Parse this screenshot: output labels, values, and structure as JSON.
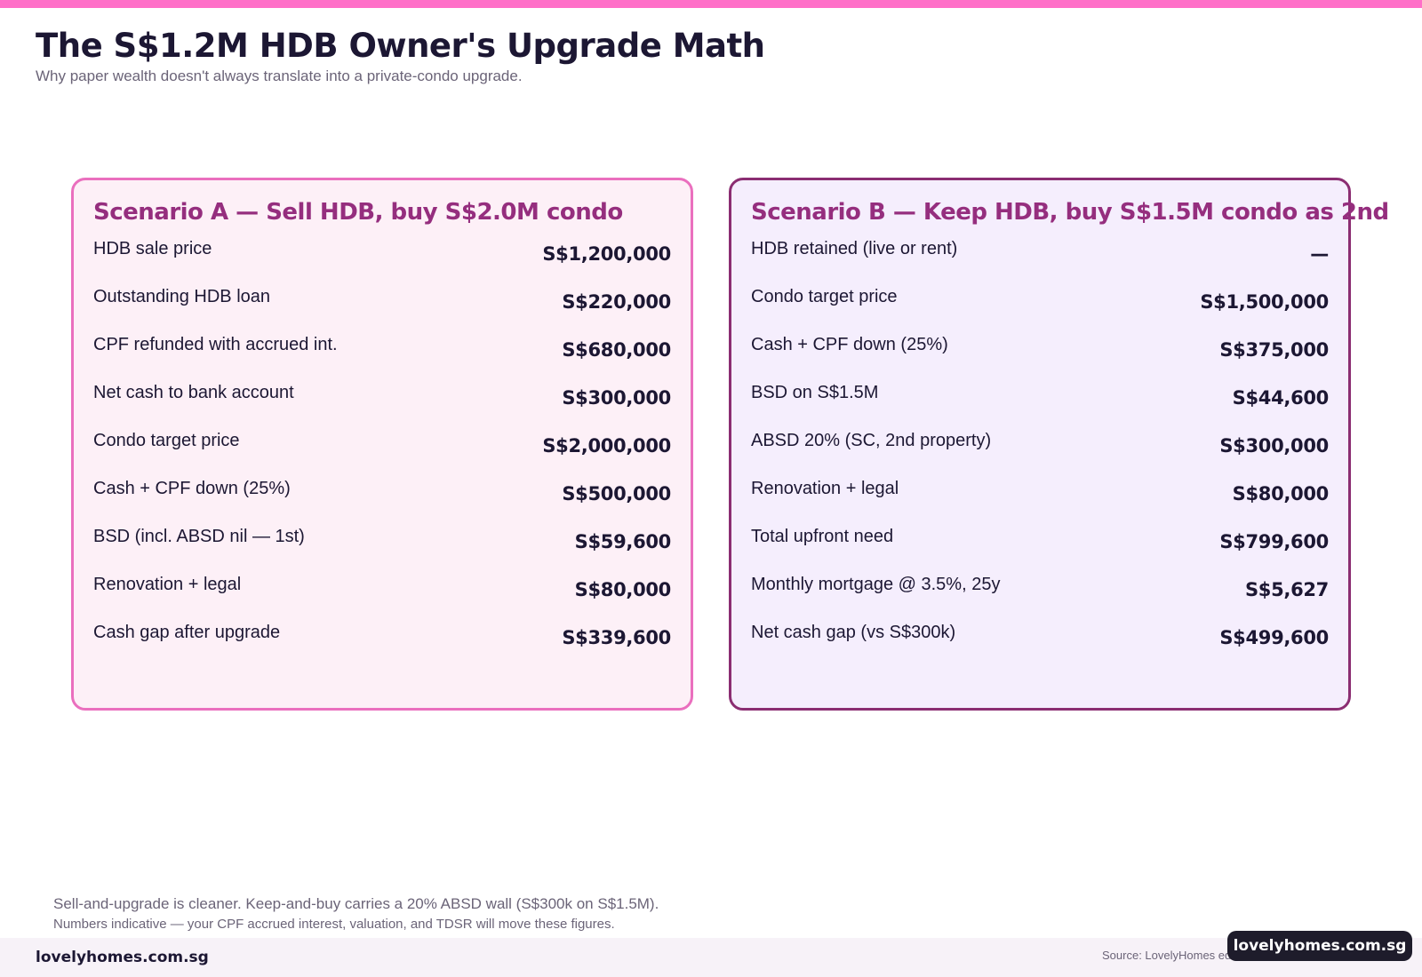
{
  "header": {
    "title": "The S$1.2M HDB Owner's Upgrade Math",
    "subtitle": "Why paper wealth doesn't always translate into a private-condo upgrade."
  },
  "scenario_a": {
    "title": "Scenario A — Sell HDB, buy S$2.0M condo",
    "rows": [
      {
        "label": "HDB sale price",
        "value": "S$1,200,000"
      },
      {
        "label": "Outstanding HDB loan",
        "value": "S$220,000"
      },
      {
        "label": "CPF refunded with accrued int.",
        "value": "S$680,000"
      },
      {
        "label": "Net cash to bank account",
        "value": "S$300,000"
      },
      {
        "label": "Condo target price",
        "value": "S$2,000,000"
      },
      {
        "label": "Cash + CPF down (25%)",
        "value": "S$500,000"
      },
      {
        "label": "BSD (incl. ABSD nil — 1st)",
        "value": "S$59,600"
      },
      {
        "label": "Renovation + legal",
        "value": "S$80,000"
      },
      {
        "label": "Cash gap after upgrade",
        "value": "S$339,600"
      }
    ]
  },
  "scenario_b": {
    "title": "Scenario B — Keep HDB, buy S$1.5M condo as 2nd",
    "rows": [
      {
        "label": "HDB retained (live or rent)",
        "value": "—"
      },
      {
        "label": "Condo target price",
        "value": "S$1,500,000"
      },
      {
        "label": "Cash + CPF down (25%)",
        "value": "S$375,000"
      },
      {
        "label": "BSD on S$1.5M",
        "value": "S$44,600"
      },
      {
        "label": "ABSD 20% (SC, 2nd property)",
        "value": "S$300,000"
      },
      {
        "label": "Renovation + legal",
        "value": "S$80,000"
      },
      {
        "label": "Total upfront need",
        "value": "S$799,600"
      },
      {
        "label": "Monthly mortgage @ 3.5%, 25y",
        "value": "S$5,627"
      },
      {
        "label": "Net cash gap (vs S$300k)",
        "value": "S$499,600"
      }
    ]
  },
  "footer": {
    "note": "Sell-and-upgrade is cleaner. Keep-and-buy carries a 20% ABSD wall (S$300k on S$1.5M).",
    "subnote": "Numbers indicative — your CPF accrued interest, valuation, and TDSR will move these figures.",
    "brand": "lovelyhomes.com.sg",
    "source": "Source: LovelyHomes edi",
    "badge": "lovelyhomes.com.sg"
  },
  "colors": {
    "accent_pink": "#ff6fc8",
    "card_a_border": "#ea6fbe",
    "card_b_border": "#8b2d72",
    "card_title": "#952e7e",
    "text_dark": "#1c1733"
  }
}
